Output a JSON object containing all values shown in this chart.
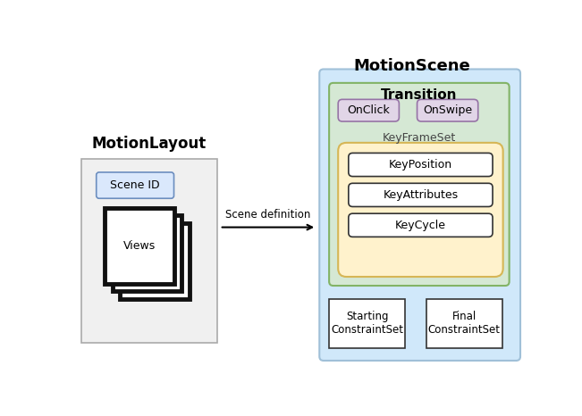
{
  "title_motionscene": "MotionScene",
  "title_motionlayout": "MotionLayout",
  "title_transition": "Transition",
  "label_keyframeset": "KeyFrameSet",
  "label_onclick": "OnClick",
  "label_onswipe": "OnSwipe",
  "label_keyposition": "KeyPosition",
  "label_keyattributes": "KeyAttributes",
  "label_keycycle": "KeyCycle",
  "label_scene_id": "Scene ID",
  "label_views": "Views",
  "label_arrow": "Scene definition",
  "label_starting": "Starting\nConstraintSet",
  "label_final": "Final\nConstraintSet",
  "bg_color": "#ffffff",
  "motionscene_box_color": "#d0e8fa",
  "motionscene_box_edge": "#a0c0d8",
  "transition_box_color": "#d5e8d4",
  "transition_box_edge": "#82b366",
  "keygroup_box_color": "#fff2cc",
  "keygroup_box_edge": "#d6b656",
  "onclick_box_color": "#e1d5e7",
  "onclick_box_edge": "#9673a6",
  "motionlayout_box_color": "#f0f0f0",
  "motionlayout_box_edge": "#aaaaaa",
  "sceneid_box_color": "#dae8fc",
  "sceneid_box_edge": "#6c8ebf",
  "white_box_color": "#ffffff",
  "white_box_edge": "#333333",
  "key_box_color": "#ffffff",
  "key_box_edge": "#333333",
  "views_stroke": "#111111"
}
